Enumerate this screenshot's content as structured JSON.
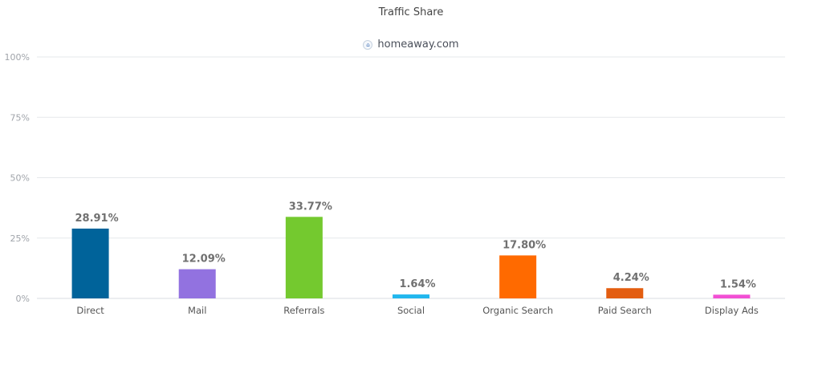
{
  "chart_data": {
    "type": "bar",
    "title": "Traffic Share",
    "legend": [
      "homeaway.com"
    ],
    "categories": [
      "Direct",
      "Mail",
      "Referrals",
      "Social",
      "Organic Search",
      "Paid Search",
      "Display Ads"
    ],
    "values": [
      28.91,
      12.09,
      33.77,
      1.64,
      17.8,
      4.24,
      1.54
    ],
    "value_labels": [
      "28.91%",
      "12.09%",
      "33.77%",
      "1.64%",
      "17.80%",
      "4.24%",
      "1.54%"
    ],
    "colors": [
      "#00639a",
      "#9272e0",
      "#74c92f",
      "#22b7ee",
      "#ff6a00",
      "#e35d10",
      "#f24fd4"
    ],
    "ylim": [
      0,
      100
    ],
    "yticks": [
      0,
      25,
      50,
      75,
      100
    ],
    "ytick_labels": [
      "0%",
      "25%",
      "50%",
      "75%",
      "100%"
    ],
    "xlabel": "",
    "ylabel": "",
    "grid": true
  }
}
